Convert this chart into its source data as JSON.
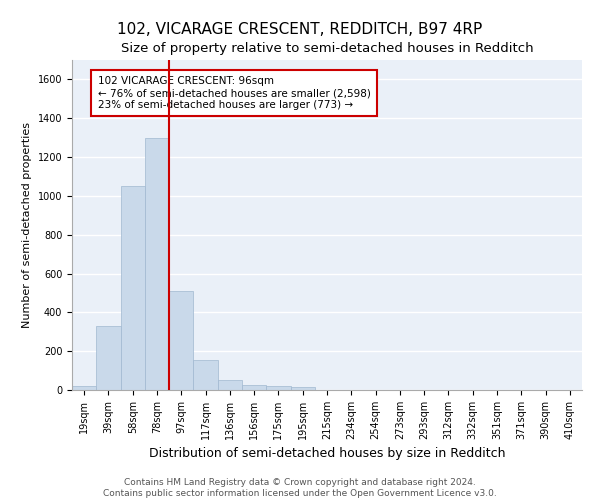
{
  "title": "102, VICARAGE CRESCENT, REDDITCH, B97 4RP",
  "subtitle": "Size of property relative to semi-detached houses in Redditch",
  "xlabel": "Distribution of semi-detached houses by size in Redditch",
  "ylabel": "Number of semi-detached properties",
  "bar_color": "#c9d9ea",
  "bar_edgecolor": "#a0b8d0",
  "categories": [
    "19sqm",
    "39sqm",
    "58sqm",
    "78sqm",
    "97sqm",
    "117sqm",
    "136sqm",
    "156sqm",
    "175sqm",
    "195sqm",
    "215sqm",
    "234sqm",
    "254sqm",
    "273sqm",
    "293sqm",
    "312sqm",
    "332sqm",
    "351sqm",
    "371sqm",
    "390sqm",
    "410sqm"
  ],
  "values": [
    20,
    330,
    1050,
    1300,
    510,
    155,
    50,
    25,
    20,
    15,
    0,
    0,
    0,
    0,
    0,
    0,
    0,
    0,
    0,
    0,
    0
  ],
  "property_bin_index": 4,
  "property_label": "102 VICARAGE CRESCENT: 96sqm",
  "smaller_pct": 76,
  "smaller_count": 2598,
  "larger_pct": 23,
  "larger_count": 773,
  "vline_color": "#cc0000",
  "annotation_box_color": "#ffffff",
  "annotation_box_edgecolor": "#cc0000",
  "ylim": [
    0,
    1700
  ],
  "yticks": [
    0,
    200,
    400,
    600,
    800,
    1000,
    1200,
    1400,
    1600
  ],
  "bg_color": "#eaf0f8",
  "grid_color": "#ffffff",
  "footer": "Contains HM Land Registry data © Crown copyright and database right 2024.\nContains public sector information licensed under the Open Government Licence v3.0.",
  "title_fontsize": 11,
  "subtitle_fontsize": 9.5,
  "xlabel_fontsize": 9,
  "ylabel_fontsize": 8,
  "tick_fontsize": 7,
  "annotation_fontsize": 7.5,
  "footer_fontsize": 6.5
}
